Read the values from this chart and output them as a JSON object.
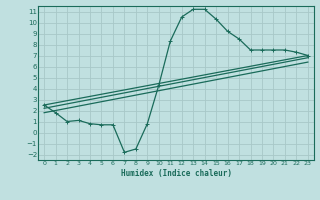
{
  "xlabel": "Humidex (Indice chaleur)",
  "background_color": "#c0e0e0",
  "grid_color": "#a8c8c8",
  "line_color": "#1a6b5a",
  "xlim": [
    -0.5,
    23.5
  ],
  "ylim": [
    -2.5,
    11.5
  ],
  "xticks": [
    0,
    1,
    2,
    3,
    4,
    5,
    6,
    7,
    8,
    9,
    10,
    11,
    12,
    13,
    14,
    15,
    16,
    17,
    18,
    19,
    20,
    21,
    22,
    23
  ],
  "yticks": [
    -2,
    -1,
    0,
    1,
    2,
    3,
    4,
    5,
    6,
    7,
    8,
    9,
    10,
    11
  ],
  "line1_x": [
    0,
    1,
    2,
    3,
    4,
    5,
    6,
    7,
    8,
    9,
    10,
    11,
    12,
    13,
    14,
    15,
    16,
    17,
    18,
    19,
    20,
    21,
    22,
    23
  ],
  "line1_y": [
    2.5,
    1.8,
    1.0,
    1.1,
    0.8,
    0.7,
    0.7,
    -1.8,
    -1.5,
    0.8,
    4.3,
    8.3,
    10.5,
    11.2,
    11.2,
    10.3,
    9.2,
    8.5,
    7.5,
    7.5,
    7.5,
    7.5,
    7.3,
    7.0
  ],
  "line2_x": [
    0,
    23
  ],
  "line2_y": [
    2.5,
    7.0
  ],
  "line3_x": [
    0,
    23
  ],
  "line3_y": [
    2.2,
    6.8
  ],
  "line4_x": [
    0,
    23
  ],
  "line4_y": [
    1.8,
    6.4
  ]
}
